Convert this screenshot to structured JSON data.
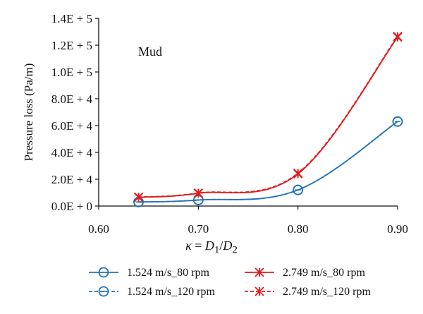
{
  "chart_data": {
    "type": "line",
    "annotation": "Mud",
    "ylabel": "Pressure loss (Pa/m)",
    "xlabel": "κ = D1/D2",
    "x": [
      0.64,
      0.7,
      0.8,
      0.9
    ],
    "xlim": [
      0.6,
      0.9
    ],
    "ylim": [
      0,
      140000
    ],
    "x_ticks": [
      0.6,
      0.7,
      0.8,
      0.9
    ],
    "x_tick_labels": [
      "0.60",
      "0.70",
      "0.80",
      "0.90"
    ],
    "y_ticks": [
      0,
      20000,
      40000,
      60000,
      80000,
      100000,
      120000,
      140000
    ],
    "y_tick_labels": [
      "0.0E + 0",
      "2.0E + 4",
      "4.0E + 4",
      "6.0E + 4",
      "8.0E + 4",
      "1.0E + 5",
      "1.2E + 5",
      "1.4E + 5"
    ],
    "grid": false,
    "legend_position": "bottom",
    "series": [
      {
        "name": "1.524 m/s_80 rpm",
        "values": [
          3000,
          4500,
          12000,
          63000
        ],
        "color": "#2472b8",
        "marker": "circle",
        "dash": "solid"
      },
      {
        "name": "1.524 m/s_120 rpm",
        "values": [
          3000,
          4500,
          12000,
          63000
        ],
        "color": "#2472b8",
        "marker": "circle-dash",
        "dash": "dashed"
      },
      {
        "name": "2.749 m/s_80 rpm",
        "values": [
          6500,
          9500,
          24000,
          126000
        ],
        "color": "#e31a1c",
        "marker": "asterisk",
        "dash": "solid"
      },
      {
        "name": "2.749 m/s_120 rpm",
        "values": [
          6700,
          9700,
          24500,
          126500
        ],
        "color": "#e31a1c",
        "marker": "asterisk",
        "dash": "dashed"
      }
    ]
  }
}
